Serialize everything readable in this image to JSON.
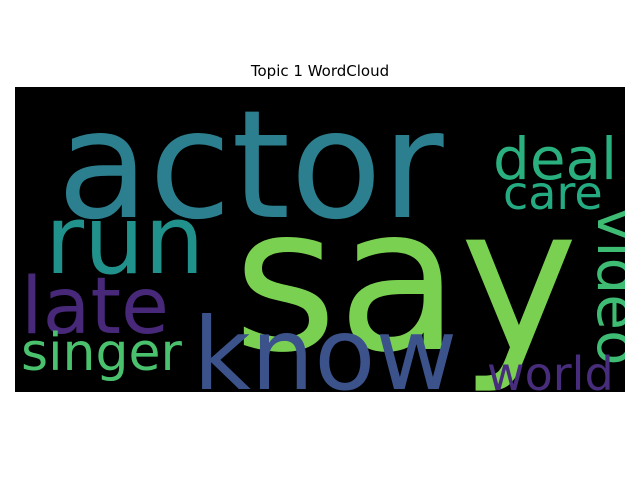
{
  "chart_data": {
    "type": "wordcloud",
    "title": "Topic 1 WordCloud",
    "background": "#000000",
    "words": [
      {
        "text": "actor",
        "weight": 1.0,
        "color": "#2c7f8e"
      },
      {
        "text": "say",
        "weight": 0.98,
        "color": "#7ad151"
      },
      {
        "text": "know",
        "weight": 0.62,
        "color": "#3b528b"
      },
      {
        "text": "run",
        "weight": 0.58,
        "color": "#21918c"
      },
      {
        "text": "late",
        "weight": 0.46,
        "color": "#482878"
      },
      {
        "text": "singer",
        "weight": 0.36,
        "color": "#4ac16d"
      },
      {
        "text": "deal",
        "weight": 0.33,
        "color": "#2ab07f"
      },
      {
        "text": "care",
        "weight": 0.27,
        "color": "#25ab82"
      },
      {
        "text": "video",
        "weight": 0.3,
        "color": "#3fbc73",
        "rotated": true
      },
      {
        "text": "world",
        "weight": 0.27,
        "color": "#472d7b"
      }
    ]
  }
}
